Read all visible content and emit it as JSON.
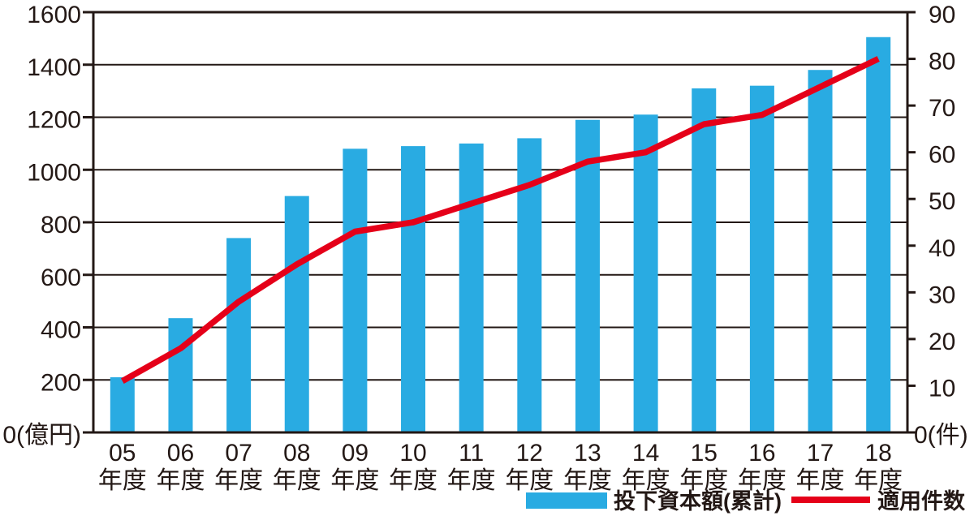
{
  "colors": {
    "axis": "#231815",
    "bar": "#29abe2",
    "line": "#e50019"
  },
  "legend": {
    "position": "bottom-right"
  },
  "chart_data": {
    "type": "bar",
    "subtype": "combo-bar-line-dual-axis",
    "title": "",
    "categories": [
      "05",
      "06",
      "07",
      "08",
      "09",
      "10",
      "11",
      "12",
      "13",
      "14",
      "15",
      "16",
      "17",
      "18"
    ],
    "category_suffix": "年度",
    "series": [
      {
        "name": "投下資本額(累計)",
        "chart": "bar",
        "axis": "left",
        "unit": "億円",
        "color": "#29abe2",
        "values": [
          210,
          435,
          740,
          900,
          1080,
          1090,
          1100,
          1120,
          1190,
          1210,
          1310,
          1320,
          1380,
          1505
        ]
      },
      {
        "name": "適用件数",
        "chart": "line",
        "axis": "right",
        "unit": "件",
        "color": "#e50019",
        "values": [
          11,
          18,
          28,
          36,
          43,
          45,
          49,
          53,
          58,
          60,
          66,
          68,
          74,
          80
        ]
      }
    ],
    "left_axis": {
      "min": 0,
      "max": 1600,
      "step": 200,
      "values": [
        0,
        200,
        400,
        600,
        800,
        1000,
        1200,
        1400,
        1600
      ],
      "labels": [
        "0(億円)",
        "200",
        "400",
        "600",
        "800",
        "1000",
        "1200",
        "1400",
        "1600"
      ]
    },
    "right_axis": {
      "min": 0,
      "max": 90,
      "step": 10,
      "values": [
        0,
        10,
        20,
        30,
        40,
        50,
        60,
        70,
        80,
        90
      ],
      "labels": [
        "0(件)",
        "10",
        "20",
        "30",
        "40",
        "50",
        "60",
        "70",
        "80",
        "90"
      ]
    },
    "grid": true,
    "legend_position": "bottom-right"
  }
}
